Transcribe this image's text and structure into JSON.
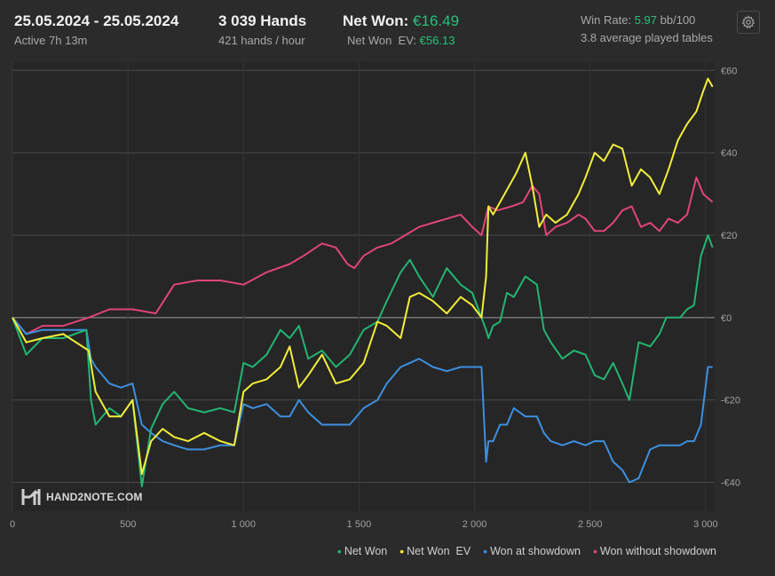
{
  "header": {
    "date_range": "25.05.2024 - 25.05.2024",
    "active": "Active 7h 13m",
    "hands_label": "3 039 Hands",
    "hands_per_hour": "421 hands / hour",
    "net_won_label": "Net Won:",
    "net_won_value": "€16.49",
    "net_won_ev_label": "Net Won  EV:",
    "net_won_ev_value": "€56.13",
    "win_rate_label": "Win Rate:",
    "win_rate_value": "5.97",
    "win_rate_unit": "bb/100",
    "avg_tables": "3.8 average played tables"
  },
  "icons": {
    "settings": "gear-icon",
    "logo": "hand2note-logo-icon"
  },
  "logo_text": "HAND2NOTE.COM",
  "colors": {
    "net_won": "#22b573",
    "net_won_ev": "#f2ee3a",
    "won_at_showdown": "#3d8fe0",
    "won_without_showdown": "#e0457a",
    "accent_green": "#27c17c"
  },
  "legend": [
    {
      "label": "Net Won",
      "series": "net_won"
    },
    {
      "label": "Net Won  EV",
      "series": "net_won_ev"
    },
    {
      "label": "Won at showdown",
      "series": "won_at_showdown"
    },
    {
      "label": "Won without showdown",
      "series": "won_without_showdown"
    }
  ],
  "chart_data": {
    "type": "line",
    "xlim": [
      0,
      3039
    ],
    "ylim": [
      -47,
      62
    ],
    "x_ticks": [
      0,
      500,
      1000,
      1500,
      2000,
      2500,
      3000
    ],
    "x_tick_labels": [
      "0",
      "500",
      "1 000",
      "1 500",
      "2 000",
      "2 500",
      "3 000"
    ],
    "y_ticks": [
      60,
      40,
      20,
      0,
      -20,
      -40
    ],
    "y_tick_labels": [
      "€60",
      "€40",
      "€20",
      "€0",
      "-€20",
      "-€40"
    ],
    "grid": true,
    "legend_position": "bottom-right",
    "series": [
      {
        "name": "Net Won",
        "key": "net_won",
        "x": [
          0,
          60,
          130,
          220,
          320,
          340,
          360,
          420,
          470,
          520,
          560,
          600,
          650,
          700,
          760,
          830,
          900,
          960,
          1000,
          1040,
          1100,
          1160,
          1200,
          1240,
          1280,
          1340,
          1400,
          1460,
          1520,
          1580,
          1620,
          1680,
          1720,
          1760,
          1820,
          1880,
          1940,
          1990,
          2030,
          2050,
          2060,
          2080,
          2110,
          2140,
          2170,
          2220,
          2270,
          2300,
          2330,
          2380,
          2430,
          2480,
          2520,
          2560,
          2600,
          2640,
          2670,
          2710,
          2760,
          2800,
          2830,
          2860,
          2890,
          2920,
          2950,
          2980,
          3010,
          3030
        ],
        "y": [
          0,
          -9,
          -5,
          -5,
          -3,
          -20,
          -26,
          -22,
          -24,
          -20,
          -41,
          -27,
          -21,
          -18,
          -22,
          -23,
          -22,
          -23,
          -11,
          -12,
          -9,
          -3,
          -5,
          -2,
          -10,
          -8,
          -12,
          -9,
          -3,
          -1,
          4,
          11,
          14,
          10,
          5,
          12,
          8,
          6,
          0,
          -3,
          -5,
          -2,
          -1,
          6,
          5,
          10,
          8,
          -3,
          -6,
          -10,
          -8,
          -9,
          -14,
          -15,
          -11,
          -16,
          -20,
          -6,
          -7,
          -4,
          0,
          0,
          0,
          2,
          3,
          15,
          20,
          17
        ]
      },
      {
        "name": "Net Won  EV",
        "key": "net_won_ev",
        "x": [
          0,
          60,
          130,
          220,
          330,
          360,
          420,
          470,
          520,
          560,
          600,
          650,
          700,
          760,
          830,
          900,
          960,
          1000,
          1040,
          1100,
          1160,
          1200,
          1240,
          1280,
          1340,
          1400,
          1460,
          1520,
          1580,
          1620,
          1680,
          1720,
          1760,
          1820,
          1880,
          1940,
          1990,
          2030,
          2050,
          2060,
          2080,
          2130,
          2180,
          2220,
          2250,
          2280,
          2310,
          2350,
          2400,
          2450,
          2480,
          2520,
          2560,
          2600,
          2640,
          2680,
          2720,
          2760,
          2800,
          2840,
          2880,
          2920,
          2960,
          2990,
          3010,
          3030
        ],
        "y": [
          0,
          -6,
          -5,
          -4,
          -8,
          -18,
          -24,
          -24,
          -20,
          -38,
          -30,
          -27,
          -29,
          -30,
          -28,
          -30,
          -31,
          -18,
          -16,
          -15,
          -12,
          -7,
          -17,
          -14,
          -9,
          -16,
          -15,
          -11,
          -1,
          -2,
          -5,
          5,
          6,
          4,
          1,
          5,
          3,
          0,
          10,
          27,
          25,
          30,
          35,
          40,
          32,
          22,
          25,
          23,
          25,
          30,
          34,
          40,
          38,
          42,
          41,
          32,
          36,
          34,
          30,
          36,
          43,
          47,
          50,
          55,
          58,
          56
        ]
      },
      {
        "name": "Won at showdown",
        "key": "won_at_showdown",
        "x": [
          0,
          60,
          130,
          220,
          320,
          340,
          360,
          420,
          470,
          520,
          560,
          600,
          650,
          700,
          760,
          830,
          900,
          960,
          1000,
          1040,
          1100,
          1160,
          1200,
          1240,
          1280,
          1340,
          1400,
          1460,
          1520,
          1580,
          1620,
          1680,
          1720,
          1760,
          1820,
          1880,
          1940,
          1990,
          2030,
          2050,
          2060,
          2080,
          2110,
          2140,
          2170,
          2220,
          2270,
          2300,
          2330,
          2380,
          2430,
          2480,
          2520,
          2560,
          2600,
          2640,
          2670,
          2710,
          2760,
          2800,
          2830,
          2860,
          2890,
          2920,
          2950,
          2980,
          3010,
          3030
        ],
        "y": [
          0,
          -4,
          -3,
          -3,
          -3,
          -10,
          -12,
          -16,
          -17,
          -16,
          -26,
          -28,
          -30,
          -31,
          -32,
          -32,
          -31,
          -31,
          -21,
          -22,
          -21,
          -24,
          -24,
          -20,
          -23,
          -26,
          -26,
          -26,
          -22,
          -20,
          -16,
          -12,
          -11,
          -10,
          -12,
          -13,
          -12,
          -12,
          -12,
          -35,
          -30,
          -30,
          -26,
          -26,
          -22,
          -24,
          -24,
          -28,
          -30,
          -31,
          -30,
          -31,
          -30,
          -30,
          -35,
          -37,
          -40,
          -39,
          -32,
          -31,
          -31,
          -31,
          -31,
          -30,
          -30,
          -26,
          -12,
          -12
        ]
      },
      {
        "name": "Won without showdown",
        "key": "won_without_showdown",
        "x": [
          0,
          60,
          130,
          220,
          330,
          420,
          520,
          620,
          700,
          800,
          900,
          1000,
          1100,
          1200,
          1260,
          1340,
          1400,
          1450,
          1480,
          1520,
          1580,
          1640,
          1700,
          1760,
          1820,
          1880,
          1940,
          1990,
          2030,
          2060,
          2100,
          2160,
          2210,
          2250,
          2280,
          2310,
          2350,
          2400,
          2450,
          2480,
          2520,
          2560,
          2600,
          2640,
          2680,
          2720,
          2760,
          2800,
          2840,
          2880,
          2920,
          2960,
          2990,
          3010,
          3030
        ],
        "y": [
          0,
          -4,
          -2,
          -2,
          0,
          2,
          2,
          1,
          8,
          9,
          9,
          8,
          11,
          13,
          15,
          18,
          17,
          13,
          12,
          15,
          17,
          18,
          20,
          22,
          23,
          24,
          25,
          22,
          20,
          27,
          26,
          27,
          28,
          32,
          30,
          20,
          22,
          23,
          25,
          24,
          21,
          21,
          23,
          26,
          27,
          22,
          23,
          21,
          24,
          23,
          25,
          34,
          30,
          29,
          28
        ]
      }
    ]
  }
}
